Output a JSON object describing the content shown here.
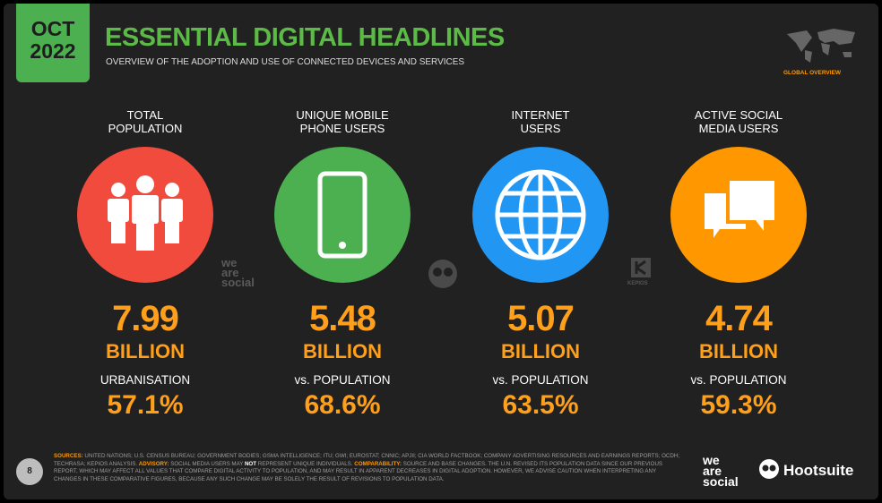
{
  "badge": {
    "month": "OCT",
    "year": "2022"
  },
  "header": {
    "title": "ESSENTIAL DIGITAL HEADLINES",
    "subtitle": "OVERVIEW OF THE ADOPTION AND USE OF CONNECTED DEVICES AND SERVICES",
    "corner": "GLOBAL OVERVIEW"
  },
  "stats": [
    {
      "label": [
        "TOTAL",
        "POPULATION"
      ],
      "value": "7.99",
      "unit": "BILLION",
      "sublabel": "URBANISATION",
      "subvalue": "57.1%",
      "color": "#f04b3c",
      "icon": "people"
    },
    {
      "label": [
        "UNIQUE MOBILE",
        "PHONE USERS"
      ],
      "value": "5.48",
      "unit": "BILLION",
      "sublabel": "vs. POPULATION",
      "subvalue": "68.6%",
      "color": "#4caf50",
      "icon": "phone"
    },
    {
      "label": [
        "INTERNET",
        "USERS"
      ],
      "value": "5.07",
      "unit": "BILLION",
      "sublabel": "vs. POPULATION",
      "subvalue": "63.5%",
      "color": "#2196f3",
      "icon": "globe"
    },
    {
      "label": [
        "ACTIVE SOCIAL",
        "MEDIA USERS"
      ],
      "value": "4.74",
      "unit": "BILLION",
      "sublabel": "vs. POPULATION",
      "subvalue": "59.3%",
      "color": "#ff9800",
      "icon": "chat"
    }
  ],
  "watermarks": {
    "we_are_social": [
      "we",
      "are",
      "social"
    ],
    "kepios": "KEPIOS"
  },
  "footer": {
    "page": "8",
    "sources": [
      {
        "text": "SOURCES:",
        "style": "label"
      },
      {
        "text": " UNITED NATIONS; U.S. CENSUS BUREAU; GOVERNMENT BODIES; GSMA INTELLIGENCE; ITU; GWI; EUROSTAT; CNNIC; APJII; CIA WORLD FACTBOOK; COMPANY ADVERTISING RESOURCES AND EARNINGS REPORTS; OCDH; TECHRASA; KEPIOS ANALYSIS. ",
        "style": "plain"
      },
      {
        "text": "ADVISORY:",
        "style": "label"
      },
      {
        "text": " SOCIAL MEDIA USERS MAY ",
        "style": "plain"
      },
      {
        "text": "NOT",
        "style": "emph"
      },
      {
        "text": " REPRESENT UNIQUE INDIVIDUALS. ",
        "style": "plain"
      },
      {
        "text": "COMPARABILITY:",
        "style": "label"
      },
      {
        "text": " SOURCE AND BASE CHANGES. THE U.N. REVISED ITS POPULATION DATA SINCE OUR PREVIOUS REPORT, WHICH MAY AFFECT ALL VALUES THAT COMPARE DIGITAL ACTIVITY TO POPULATION, AND MAY RESULT IN APPARENT DECREASES IN DIGITAL ADOPTION. HOWEVER, WE ADVISE CAUTION WHEN INTERPRETING ANY CHANGES IN THESE COMPARATIVE FIGURES, BECAUSE ANY SUCH CHANGE MAY BE SOLELY THE RESULT OF REVISIONS TO POPULATION DATA.",
        "style": "plain"
      }
    ],
    "logo_was": [
      "we",
      "are",
      "social"
    ],
    "logo_hootsuite": "Hootsuite"
  }
}
